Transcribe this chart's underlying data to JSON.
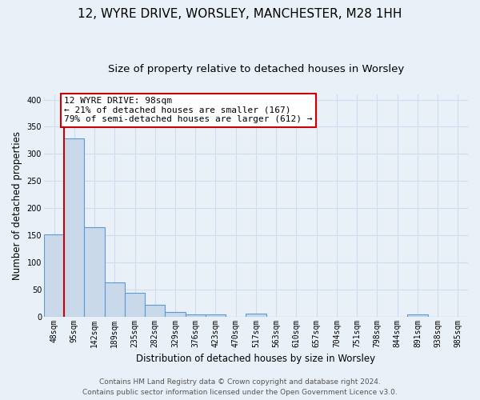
{
  "title1": "12, WYRE DRIVE, WORSLEY, MANCHESTER, M28 1HH",
  "title2": "Size of property relative to detached houses in Worsley",
  "xlabel": "Distribution of detached houses by size in Worsley",
  "ylabel": "Number of detached properties",
  "bar_labels": [
    "48sqm",
    "95sqm",
    "142sqm",
    "189sqm",
    "235sqm",
    "282sqm",
    "329sqm",
    "376sqm",
    "423sqm",
    "470sqm",
    "517sqm",
    "563sqm",
    "610sqm",
    "657sqm",
    "704sqm",
    "751sqm",
    "798sqm",
    "844sqm",
    "891sqm",
    "938sqm",
    "985sqm"
  ],
  "bar_heights": [
    152,
    328,
    165,
    63,
    44,
    21,
    9,
    4,
    4,
    0,
    5,
    0,
    0,
    0,
    0,
    0,
    0,
    0,
    4,
    0,
    0
  ],
  "bar_color": "#c9d9ea",
  "bar_edge_color": "#5b9bd5",
  "annotation_text": "12 WYRE DRIVE: 98sqm\n← 21% of detached houses are smaller (167)\n79% of semi-detached houses are larger (612) →",
  "annotation_box_color": "#ffffff",
  "annotation_box_edge_color": "#cc0000",
  "footer_text": "Contains HM Land Registry data © Crown copyright and database right 2024.\nContains public sector information licensed under the Open Government Licence v3.0.",
  "ylim": [
    0,
    410
  ],
  "background_color": "#eaf0f8",
  "plot_background": "#eaf0f8",
  "grid_color": "#ccddee",
  "title_fontsize": 11,
  "subtitle_fontsize": 9.5,
  "axis_label_fontsize": 8.5,
  "tick_fontsize": 7,
  "footer_fontsize": 6.5
}
